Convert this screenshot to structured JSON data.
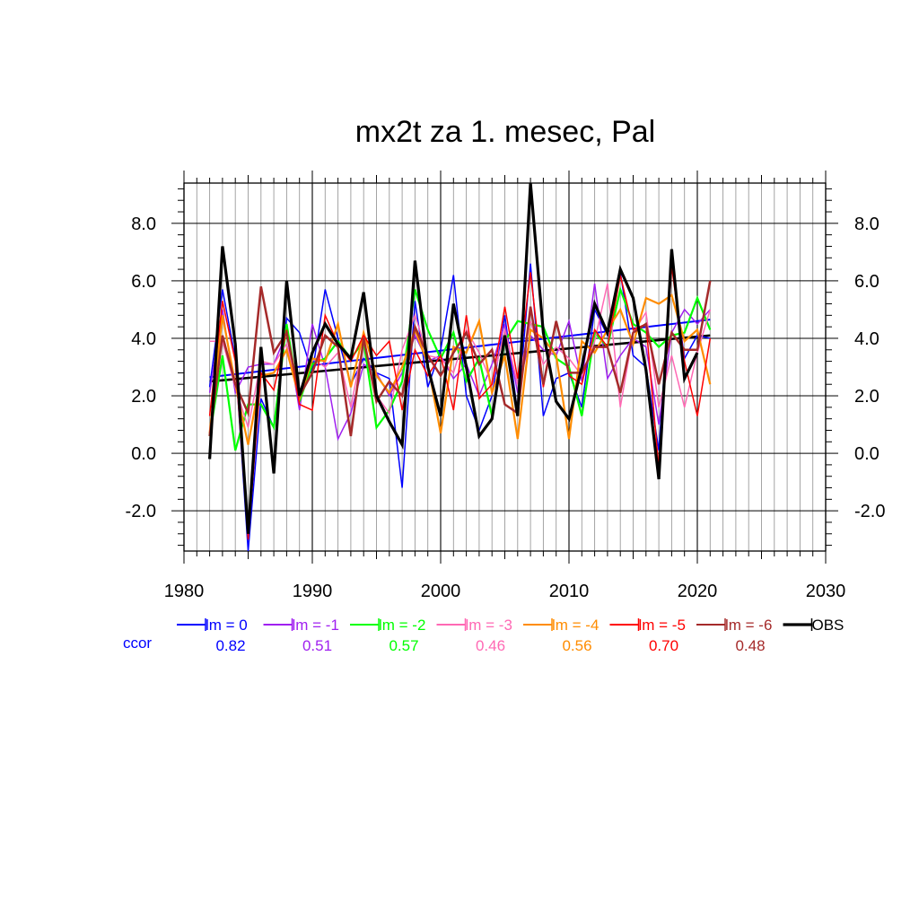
{
  "chart_data": {
    "type": "line",
    "title": "mx2t za 1. mesec, Pal",
    "xlabel": "",
    "ylabel": "",
    "xlim": [
      1980,
      2030
    ],
    "ylim": [
      -3.4,
      9.4
    ],
    "x_ticks": [
      "1980",
      "1990",
      "2000",
      "2010",
      "2020",
      "2030"
    ],
    "y_ticks": [
      "8.0",
      "6.0",
      "4.0",
      "2.0",
      "0.0",
      "-2.0"
    ],
    "y_tick_values": [
      8,
      6,
      4,
      2,
      0,
      -2
    ],
    "grid": true,
    "legend_position": "bottom",
    "ccor_label": "ccor",
    "x": [
      1982,
      1983,
      1984,
      1985,
      1986,
      1987,
      1988,
      1989,
      1990,
      1991,
      1992,
      1993,
      1994,
      1995,
      1996,
      1997,
      1998,
      1999,
      2000,
      2001,
      2002,
      2003,
      2004,
      2005,
      2006,
      2007,
      2008,
      2009,
      2010,
      2011,
      2012,
      2013,
      2014,
      2015,
      2016,
      2017,
      2018,
      2019,
      2020,
      2021
    ],
    "series": [
      {
        "name": "lm = 0",
        "ccor": "0.82",
        "color": "#0000ff",
        "width": 1.5,
        "trend": [
          2.65,
          4.65
        ],
        "values": [
          2.3,
          5.7,
          3.3,
          -3.4,
          1.9,
          0.9,
          4.7,
          4.2,
          2.8,
          5.7,
          4.0,
          2.4,
          3.3,
          2.8,
          2.6,
          -1.2,
          5.3,
          2.3,
          3.6,
          6.2,
          2.0,
          0.8,
          2.0,
          4.8,
          1.4,
          6.6,
          1.3,
          2.6,
          2.8,
          1.6,
          5.0,
          4.1,
          6.3,
          3.4,
          3.0,
          0.1,
          6.6,
          3.3,
          4.1,
          4.0
        ]
      },
      {
        "name": "lm = -1",
        "ccor": "0.51",
        "color": "#a020f0",
        "width": 1.5,
        "values": [
          2.1,
          5.0,
          2.1,
          3.0,
          3.1,
          3.1,
          4.2,
          1.5,
          4.5,
          3.0,
          0.5,
          1.4,
          3.1,
          2.8,
          2.0,
          2.8,
          4.1,
          3.2,
          3.4,
          2.6,
          3.1,
          2.0,
          3.1,
          4.5,
          2.1,
          4.1,
          3.6,
          3.4,
          4.6,
          2.5,
          5.9,
          2.6,
          3.4,
          4.0,
          3.7,
          1.0,
          4.2,
          5.0,
          4.5,
          5.0
        ]
      },
      {
        "name": "lm = -2",
        "ccor": "0.57",
        "color": "#00ff00",
        "width": 2.2,
        "values": [
          0.6,
          3.4,
          0.1,
          1.7,
          1.7,
          0.9,
          4.5,
          1.8,
          3.1,
          3.3,
          3.9,
          3.3,
          3.9,
          0.9,
          1.5,
          2.5,
          5.7,
          4.3,
          3.3,
          4.2,
          2.5,
          3.3,
          1.3,
          3.9,
          4.6,
          4.5,
          4.4,
          3.3,
          3.0,
          1.3,
          4.2,
          3.7,
          5.7,
          4.5,
          4.2,
          3.7,
          4.1,
          4.2,
          5.4,
          4.3
        ]
      },
      {
        "name": "lm = -3",
        "ccor": "0.46",
        "color": "#ff69b4",
        "width": 1.5,
        "values": [
          3.9,
          3.9,
          2.3,
          0.9,
          3.2,
          3.1,
          3.8,
          2.1,
          3.3,
          3.0,
          3.5,
          1.6,
          3.9,
          2.0,
          1.4,
          3.6,
          4.8,
          3.4,
          3.3,
          2.8,
          4.3,
          3.5,
          2.4,
          4.3,
          2.4,
          4.6,
          3.1,
          3.7,
          3.3,
          2.7,
          3.9,
          5.9,
          1.6,
          4.2,
          4.9,
          1.6,
          3.4,
          1.6,
          3.5,
          5.0
        ]
      },
      {
        "name": "lm = -4",
        "ccor": "0.56",
        "color": "#ff8c00",
        "width": 2.2,
        "values": [
          0.7,
          4.8,
          2.4,
          0.3,
          2.7,
          2.8,
          3.6,
          1.9,
          3.3,
          3.2,
          4.5,
          2.3,
          4.2,
          2.7,
          2.1,
          3.0,
          4.3,
          3.1,
          0.7,
          3.7,
          3.5,
          4.6,
          2.1,
          3.4,
          0.5,
          4.3,
          4.0,
          3.4,
          0.5,
          3.9,
          3.5,
          4.3,
          5.0,
          3.8,
          5.4,
          5.2,
          5.5,
          3.9,
          4.3,
          2.4
        ]
      },
      {
        "name": "lm = -5",
        "ccor": "0.70",
        "color": "#ff0000",
        "width": 1.5,
        "values": [
          1.3,
          5.3,
          3.2,
          -3.0,
          2.8,
          2.2,
          4.3,
          1.7,
          1.5,
          4.8,
          3.8,
          3.2,
          4.1,
          3.4,
          3.9,
          1.5,
          3.6,
          2.7,
          3.4,
          1.5,
          4.8,
          1.9,
          2.4,
          5.1,
          2.6,
          6.3,
          2.3,
          4.6,
          2.7,
          2.4,
          4.3,
          3.7,
          6.2,
          4.3,
          4.5,
          -0.5,
          6.5,
          3.2,
          1.3,
          4.0
        ]
      },
      {
        "name": "lm = -6",
        "ccor": "0.48",
        "color": "#a52a2a",
        "width": 2.5,
        "values": [
          0.6,
          4.1,
          2.4,
          1.4,
          5.8,
          3.5,
          4.2,
          2.0,
          2.8,
          4.1,
          3.7,
          0.6,
          4.0,
          1.8,
          2.5,
          2.0,
          4.4,
          3.4,
          2.7,
          3.5,
          4.2,
          3.1,
          3.6,
          1.7,
          1.4,
          5.1,
          2.4,
          4.6,
          2.8,
          2.8,
          3.7,
          3.7,
          2.1,
          4.2,
          4.5,
          2.4,
          4.2,
          3.6,
          3.6,
          6.0
        ]
      },
      {
        "name": "OBS",
        "ccor": "",
        "color": "#000000",
        "width": 3.2,
        "trend": [
          2.5,
          4.1
        ],
        "values": [
          -0.2,
          7.2,
          3.8,
          -2.8,
          3.7,
          -0.7,
          6.0,
          2.0,
          3.5,
          4.5,
          3.8,
          3.3,
          5.6,
          2.0,
          1.1,
          0.3,
          6.7,
          3.0,
          1.3,
          5.2,
          3.0,
          0.6,
          1.2,
          4.1,
          1.3,
          9.4,
          4.2,
          1.8,
          1.2,
          3.0,
          5.2,
          4.2,
          6.4,
          5.4,
          2.9,
          -0.9,
          7.1,
          2.6,
          3.5,
          null
        ]
      }
    ]
  }
}
